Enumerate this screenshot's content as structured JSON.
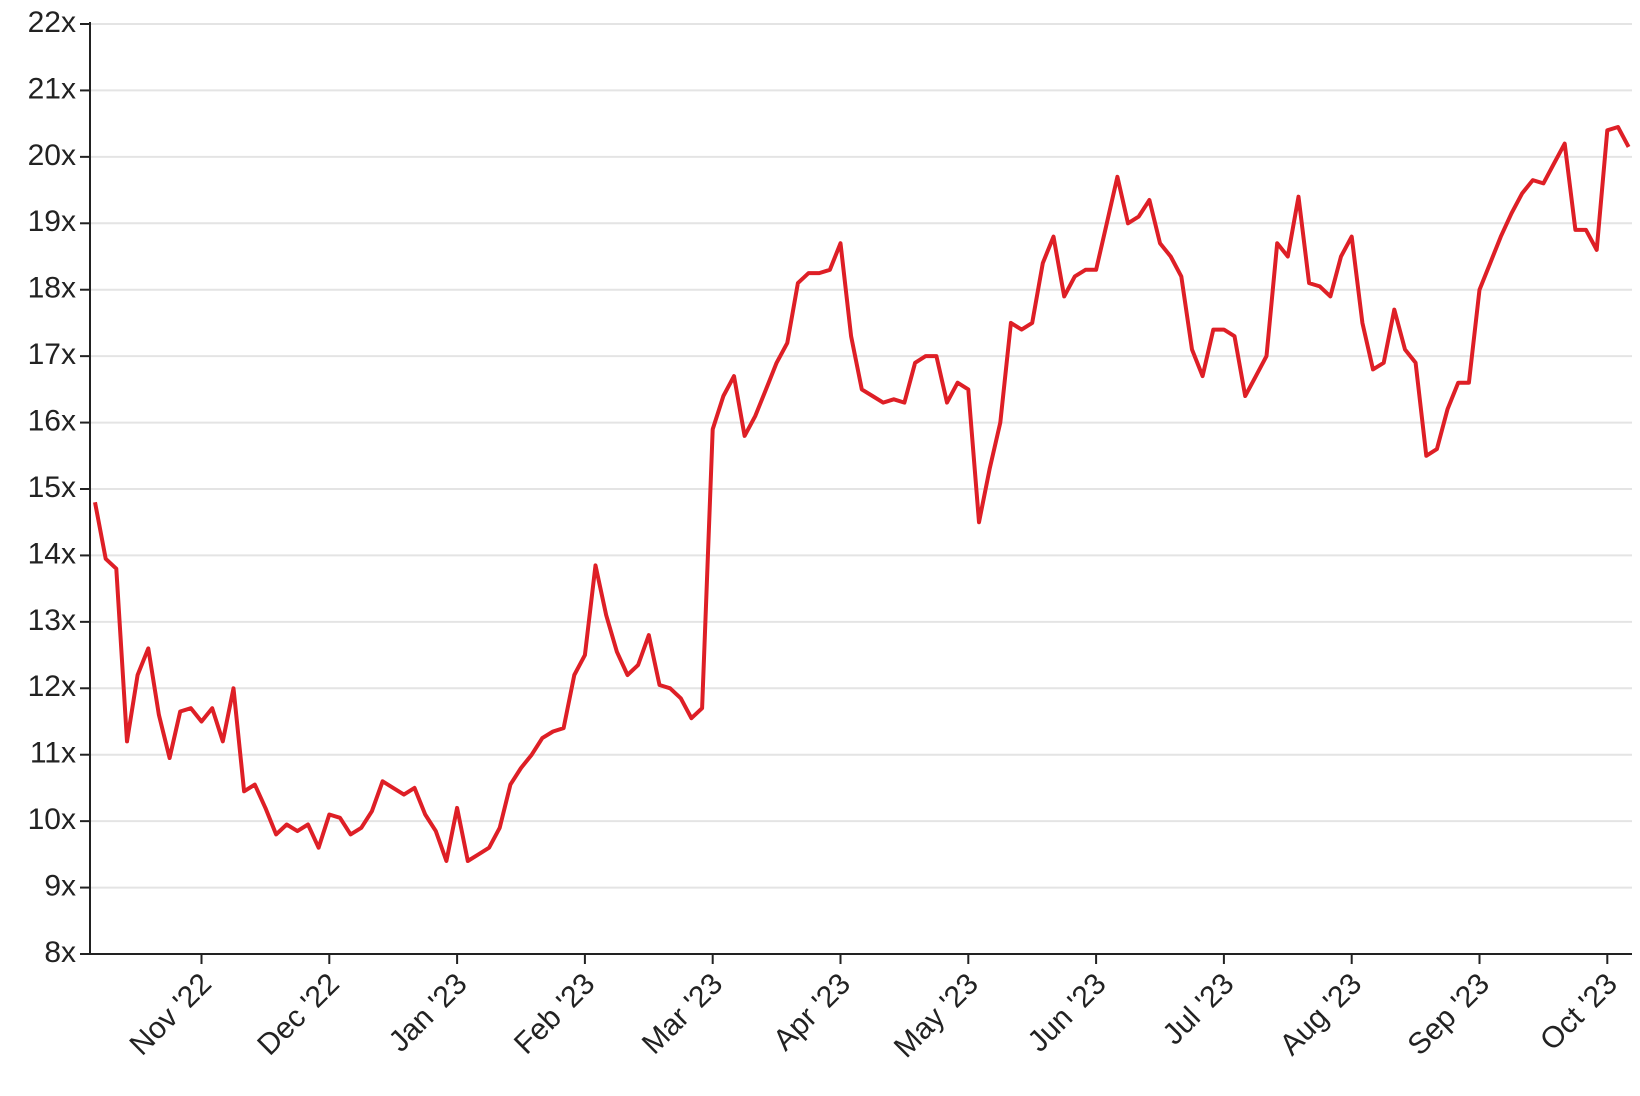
{
  "chart_data": {
    "type": "line",
    "categories": [
      null,
      null,
      null,
      null,
      null,
      null,
      null,
      null,
      null,
      null,
      "Nov '22",
      null,
      null,
      null,
      null,
      null,
      null,
      null,
      null,
      null,
      null,
      null,
      "Dec '22",
      null,
      null,
      null,
      null,
      null,
      null,
      null,
      null,
      null,
      null,
      null,
      "Jan '23",
      null,
      null,
      null,
      null,
      null,
      null,
      null,
      null,
      null,
      null,
      null,
      "Feb '23",
      null,
      null,
      null,
      null,
      null,
      null,
      null,
      null,
      null,
      null,
      null,
      "Mar '23",
      null,
      null,
      null,
      null,
      null,
      null,
      null,
      null,
      null,
      null,
      null,
      "Apr '23",
      null,
      null,
      null,
      null,
      null,
      null,
      null,
      null,
      null,
      null,
      null,
      "May '23",
      null,
      null,
      null,
      null,
      null,
      null,
      null,
      null,
      null,
      null,
      null,
      "Jun '23",
      null,
      null,
      null,
      null,
      null,
      null,
      null,
      null,
      null,
      null,
      null,
      "Jul '23",
      null,
      null,
      null,
      null,
      null,
      null,
      null,
      null,
      null,
      null,
      null,
      "Aug '23",
      null,
      null,
      null,
      null,
      null,
      null,
      null,
      null,
      null,
      null,
      null,
      "Sep '23",
      null,
      null,
      null,
      null,
      null,
      null,
      null,
      null,
      null,
      null,
      null,
      "Oct '23",
      null,
      null
    ],
    "series": [
      {
        "color": "#de1f26",
        "values": [
          14.8,
          13.95,
          13.8,
          11.2,
          12.2,
          12.6,
          11.6,
          10.95,
          11.65,
          11.7,
          11.5,
          11.7,
          11.2,
          12.0,
          10.45,
          10.55,
          10.2,
          9.8,
          9.95,
          9.85,
          9.95,
          9.6,
          10.1,
          10.05,
          9.8,
          9.9,
          10.15,
          10.6,
          10.5,
          10.4,
          10.5,
          10.1,
          9.85,
          9.4,
          10.2,
          9.4,
          9.5,
          9.6,
          9.9,
          10.55,
          10.8,
          11.0,
          11.25,
          11.35,
          11.4,
          12.2,
          12.5,
          13.85,
          13.1,
          12.55,
          12.2,
          12.35,
          12.8,
          12.05,
          12.0,
          11.85,
          11.55,
          11.7,
          15.9,
          16.4,
          16.7,
          15.8,
          16.1,
          16.5,
          16.9,
          17.2,
          18.1,
          18.25,
          18.25,
          18.3,
          18.7,
          17.3,
          16.5,
          16.4,
          16.3,
          16.35,
          16.3,
          16.9,
          17.0,
          17.0,
          16.3,
          16.6,
          16.5,
          14.5,
          15.3,
          16.0,
          17.5,
          17.4,
          17.5,
          18.4,
          18.8,
          17.9,
          18.2,
          18.3,
          18.3,
          19.0,
          19.7,
          19.0,
          19.1,
          19.35,
          18.7,
          18.5,
          18.2,
          17.1,
          16.7,
          17.4,
          17.4,
          17.3,
          16.4,
          16.7,
          17.0,
          18.7,
          18.5,
          19.4,
          18.1,
          18.05,
          17.9,
          18.5,
          18.8,
          17.5,
          16.8,
          16.9,
          17.7,
          17.1,
          16.9,
          15.5,
          15.6,
          16.2,
          16.6,
          16.6,
          18.0,
          18.4,
          18.8,
          19.15,
          19.45,
          19.65,
          19.6,
          19.9,
          20.2,
          18.9,
          18.9,
          18.6,
          20.4,
          20.45,
          20.15
        ]
      }
    ],
    "ylim": [
      8,
      22
    ],
    "yticks": [
      {
        "value": 8,
        "label": "8x"
      },
      {
        "value": 9,
        "label": "9x"
      },
      {
        "value": 10,
        "label": "10x"
      },
      {
        "value": 11,
        "label": "11x"
      },
      {
        "value": 12,
        "label": "12x"
      },
      {
        "value": 13,
        "label": "13x"
      },
      {
        "value": 14,
        "label": "14x"
      },
      {
        "value": 15,
        "label": "15x"
      },
      {
        "value": 16,
        "label": "16x"
      },
      {
        "value": 17,
        "label": "17x"
      },
      {
        "value": 18,
        "label": "18x"
      },
      {
        "value": 19,
        "label": "19x"
      },
      {
        "value": 20,
        "label": "20x"
      },
      {
        "value": 21,
        "label": "21x"
      },
      {
        "value": 22,
        "label": "22x"
      }
    ],
    "grid": true
  }
}
